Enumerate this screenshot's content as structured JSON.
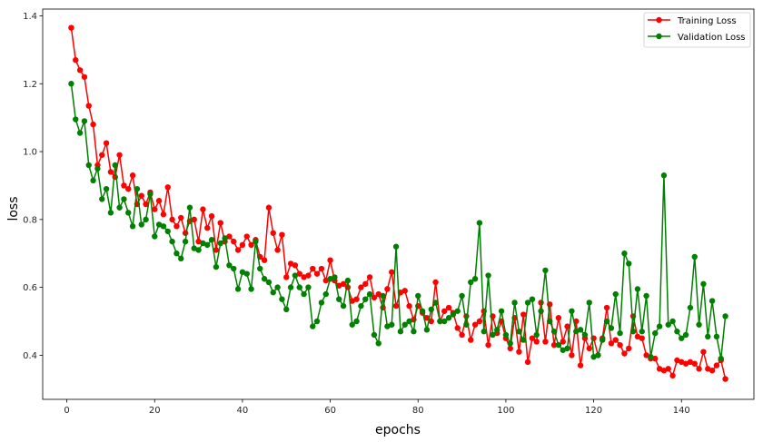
{
  "chart_data": {
    "type": "line",
    "title": "",
    "xlabel": "epochs",
    "ylabel": "loss",
    "xlim": [
      -5.5,
      156.5
    ],
    "ylim": [
      0.27,
      1.42
    ],
    "xticks": [
      0,
      20,
      40,
      60,
      80,
      100,
      120,
      140
    ],
    "yticks": [
      0.4,
      0.6,
      0.8,
      1.0,
      1.2,
      1.4
    ],
    "ytick_labels": [
      "0.4",
      "0.6",
      "0.8",
      "1.0",
      "1.2",
      "1.4"
    ],
    "grid": false,
    "legend_position": "top-right",
    "x": [
      1,
      2,
      3,
      4,
      5,
      6,
      7,
      8,
      9,
      10,
      11,
      12,
      13,
      14,
      15,
      16,
      17,
      18,
      19,
      20,
      21,
      22,
      23,
      24,
      25,
      26,
      27,
      28,
      29,
      30,
      31,
      32,
      33,
      34,
      35,
      36,
      37,
      38,
      39,
      40,
      41,
      42,
      43,
      44,
      45,
      46,
      47,
      48,
      49,
      50,
      51,
      52,
      53,
      54,
      55,
      56,
      57,
      58,
      59,
      60,
      61,
      62,
      63,
      64,
      65,
      66,
      67,
      68,
      69,
      70,
      71,
      72,
      73,
      74,
      75,
      76,
      77,
      78,
      79,
      80,
      81,
      82,
      83,
      84,
      85,
      86,
      87,
      88,
      89,
      90,
      91,
      92,
      93,
      94,
      95,
      96,
      97,
      98,
      99,
      100,
      101,
      102,
      103,
      104,
      105,
      106,
      107,
      108,
      109,
      110,
      111,
      112,
      113,
      114,
      115,
      116,
      117,
      118,
      119,
      120,
      121,
      122,
      123,
      124,
      125,
      126,
      127,
      128,
      129,
      130,
      131,
      132,
      133,
      134,
      135,
      136,
      137,
      138,
      139,
      140,
      141,
      142,
      143,
      144,
      145,
      146,
      147,
      148,
      149,
      150
    ],
    "series": [
      {
        "name": "Training Loss",
        "color": "#ff0000",
        "values": [
          1.365,
          1.27,
          1.24,
          1.22,
          1.135,
          1.08,
          0.96,
          0.99,
          1.025,
          0.94,
          0.925,
          0.99,
          0.9,
          0.89,
          0.93,
          0.845,
          0.87,
          0.845,
          0.88,
          0.83,
          0.855,
          0.815,
          0.895,
          0.8,
          0.78,
          0.805,
          0.76,
          0.795,
          0.8,
          0.735,
          0.83,
          0.775,
          0.81,
          0.71,
          0.79,
          0.735,
          0.75,
          0.735,
          0.71,
          0.725,
          0.75,
          0.725,
          0.74,
          0.69,
          0.68,
          0.835,
          0.76,
          0.71,
          0.755,
          0.63,
          0.67,
          0.665,
          0.64,
          0.63,
          0.635,
          0.655,
          0.64,
          0.655,
          0.62,
          0.68,
          0.62,
          0.605,
          0.61,
          0.6,
          0.56,
          0.565,
          0.6,
          0.61,
          0.63,
          0.57,
          0.58,
          0.54,
          0.595,
          0.645,
          0.545,
          0.585,
          0.59,
          0.545,
          0.505,
          0.545,
          0.525,
          0.51,
          0.5,
          0.615,
          0.5,
          0.53,
          0.54,
          0.525,
          0.48,
          0.46,
          0.515,
          0.445,
          0.49,
          0.5,
          0.53,
          0.43,
          0.515,
          0.465,
          0.5,
          0.45,
          0.42,
          0.51,
          0.41,
          0.52,
          0.38,
          0.45,
          0.44,
          0.555,
          0.44,
          0.55,
          0.43,
          0.51,
          0.44,
          0.485,
          0.4,
          0.5,
          0.37,
          0.45,
          0.42,
          0.45,
          0.4,
          0.45,
          0.54,
          0.435,
          0.445,
          0.43,
          0.405,
          0.42,
          0.515,
          0.455,
          0.45,
          0.4,
          0.39,
          0.39,
          0.36,
          0.355,
          0.36,
          0.34,
          0.385,
          0.38,
          0.375,
          0.38,
          0.375,
          0.36,
          0.41,
          0.36,
          0.355,
          0.37,
          0.385,
          0.33
        ]
      },
      {
        "name": "Validation Loss",
        "color": "#008000",
        "values": [
          1.2,
          1.095,
          1.055,
          1.09,
          0.96,
          0.915,
          0.95,
          0.86,
          0.89,
          0.82,
          0.96,
          0.835,
          0.86,
          0.82,
          0.78,
          0.89,
          0.785,
          0.8,
          0.875,
          0.75,
          0.785,
          0.78,
          0.765,
          0.735,
          0.7,
          0.685,
          0.735,
          0.835,
          0.715,
          0.71,
          0.73,
          0.725,
          0.74,
          0.66,
          0.73,
          0.745,
          0.665,
          0.655,
          0.595,
          0.645,
          0.64,
          0.595,
          0.735,
          0.655,
          0.625,
          0.615,
          0.585,
          0.6,
          0.565,
          0.535,
          0.6,
          0.635,
          0.6,
          0.58,
          0.6,
          0.485,
          0.5,
          0.555,
          0.58,
          0.625,
          0.63,
          0.565,
          0.545,
          0.62,
          0.49,
          0.5,
          0.545,
          0.565,
          0.58,
          0.46,
          0.435,
          0.575,
          0.485,
          0.49,
          0.72,
          0.47,
          0.49,
          0.5,
          0.47,
          0.575,
          0.53,
          0.475,
          0.535,
          0.555,
          0.5,
          0.5,
          0.51,
          0.52,
          0.53,
          0.575,
          0.49,
          0.615,
          0.625,
          0.79,
          0.47,
          0.635,
          0.46,
          0.475,
          0.53,
          0.46,
          0.435,
          0.555,
          0.47,
          0.445,
          0.555,
          0.565,
          0.46,
          0.53,
          0.65,
          0.5,
          0.47,
          0.43,
          0.415,
          0.42,
          0.53,
          0.47,
          0.475,
          0.46,
          0.555,
          0.395,
          0.4,
          0.445,
          0.5,
          0.48,
          0.58,
          0.465,
          0.7,
          0.67,
          0.47,
          0.595,
          0.47,
          0.575,
          0.395,
          0.465,
          0.485,
          0.93,
          0.49,
          0.5,
          0.47,
          0.45,
          0.46,
          0.54,
          0.69,
          0.49,
          0.61,
          0.455,
          0.56,
          0.455,
          0.39,
          0.515
        ]
      }
    ]
  }
}
